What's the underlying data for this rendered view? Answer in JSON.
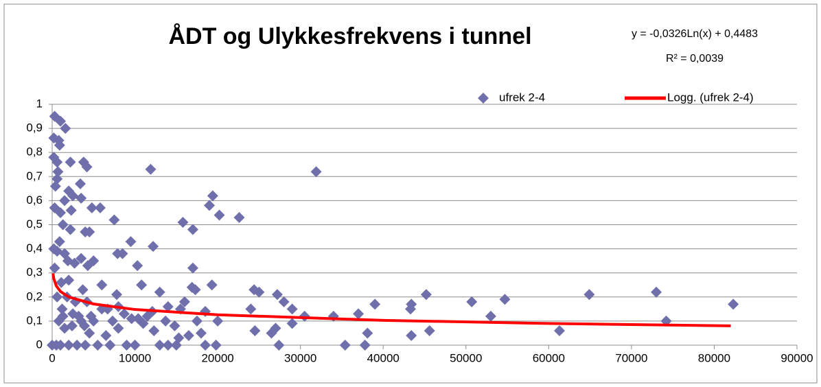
{
  "chart_data": {
    "type": "scatter",
    "title": "ÅDT og Ulykkesfrekvens i tunnel",
    "annotations": [
      "y = -0,0326Ln(x) + 0,4483",
      "R² = 0,0039"
    ],
    "xlim": [
      0,
      90000
    ],
    "xticks": [
      0,
      10000,
      20000,
      30000,
      40000,
      50000,
      60000,
      70000,
      80000,
      90000
    ],
    "ylim": [
      0,
      1
    ],
    "yticks": [
      0,
      {
        "value": 0.1,
        "label": "0,1"
      },
      {
        "value": 0.2,
        "label": "0,2"
      },
      {
        "value": 0.3,
        "label": "0,3"
      },
      {
        "value": 0.4,
        "label": "0,4"
      },
      {
        "value": 0.5,
        "label": "0,5"
      },
      {
        "value": 0.6,
        "label": "0,6"
      },
      {
        "value": 0.7,
        "label": "0,7"
      },
      {
        "value": 0.8,
        "label": "0,8"
      },
      {
        "value": 0.9,
        "label": "0,9"
      },
      1
    ],
    "grid": true,
    "legend": "top-right",
    "series": [
      {
        "name": "ufrek 2-4",
        "type": "scatter",
        "color": "#6f6fab",
        "x": [
          300,
          1000,
          1600,
          200,
          800,
          900,
          200,
          600,
          2200,
          3800,
          4200,
          11900,
          31900,
          700,
          600,
          400,
          3400,
          2000,
          1500,
          2500,
          3500,
          19400,
          19000,
          20200,
          22600,
          300,
          1000,
          5800,
          4800,
          2300,
          7500,
          15800,
          17000,
          1300,
          2200,
          4000,
          4500,
          200,
          900,
          9500,
          12200,
          7900,
          8500,
          600,
          1500,
          10300,
          1900,
          2700,
          3500,
          4300,
          5000,
          17000,
          300,
          1100,
          2000,
          6000,
          10800,
          19300,
          24400,
          25000,
          27200,
          28000,
          29000,
          13000,
          16900,
          17300,
          12100,
          14000,
          15500,
          7800,
          8000,
          9600,
          10400,
          18500,
          24000,
          30500,
          34000,
          37000,
          39000,
          43400,
          43300,
          45200,
          50700,
          53000,
          54700,
          64900,
          73000,
          74200,
          82300,
          61300,
          45600,
          43400,
          38100,
          37800,
          35400,
          27400,
          26500,
          27000,
          24500,
          29000,
          20000,
          18000,
          19800,
          18500,
          17500,
          16500,
          15000,
          15300,
          14000,
          13000,
          12300,
          11000,
          10000,
          9000,
          8000,
          7000,
          6500,
          6000,
          5000,
          4500,
          4000,
          3500,
          3000,
          2500,
          2000,
          1500,
          1000,
          500,
          0,
          800,
          1200,
          1800,
          2800,
          3200,
          3700,
          4200,
          5500,
          600,
          1300,
          2400,
          3900,
          4700,
          6700,
          7300,
          8700,
          11500,
          13700,
          16000,
          14800
        ],
        "values": [
          0.95,
          0.93,
          0.9,
          0.86,
          0.85,
          0.83,
          0.78,
          0.76,
          0.76,
          0.76,
          0.74,
          0.73,
          0.72,
          0.72,
          0.69,
          0.66,
          0.67,
          0.64,
          0.6,
          0.62,
          0.61,
          0.62,
          0.58,
          0.54,
          0.53,
          0.57,
          0.55,
          0.57,
          0.57,
          0.56,
          0.52,
          0.51,
          0.48,
          0.5,
          0.48,
          0.47,
          0.47,
          0.4,
          0.43,
          0.43,
          0.41,
          0.38,
          0.38,
          0.39,
          0.38,
          0.33,
          0.35,
          0.34,
          0.36,
          0.33,
          0.35,
          0.32,
          0.32,
          0.26,
          0.27,
          0.25,
          0.25,
          0.25,
          0.23,
          0.22,
          0.21,
          0.18,
          0.15,
          0.22,
          0.24,
          0.23,
          0.14,
          0.16,
          0.15,
          0.21,
          0.16,
          0.11,
          0.11,
          0.14,
          0.15,
          0.12,
          0.12,
          0.13,
          0.17,
          0.17,
          0.15,
          0.21,
          0.18,
          0.12,
          0.19,
          0.21,
          0.22,
          0.1,
          0.17,
          0.06,
          0.06,
          0.04,
          0.05,
          0,
          0,
          0,
          0.05,
          0.07,
          0.06,
          0.09,
          0.1,
          0.05,
          0,
          0,
          0.1,
          0.04,
          0,
          0.03,
          0,
          0,
          0.06,
          0.09,
          0,
          0,
          0.07,
          0,
          0.04,
          0.15,
          0.1,
          0.05,
          0,
          0.1,
          0,
          0.13,
          0,
          0.07,
          0,
          0,
          0,
          0.1,
          0.15,
          0.2,
          0.18,
          0.12,
          0.23,
          0.18,
          0,
          0.2,
          0.12,
          0.08,
          0.08,
          0.12,
          0.15,
          0.1,
          0.13,
          0.12,
          0.1,
          0.18,
          0.08
        ]
      },
      {
        "name": "Logg. (ufrek 2-4)",
        "type": "line",
        "color": "#ff0000",
        "x": [
          100,
          200,
          500,
          1000,
          2000,
          5000,
          10000,
          20000,
          40000,
          60000,
          82000
        ],
        "values": [
          0.298,
          0.276,
          0.246,
          0.223,
          0.2,
          0.171,
          0.148,
          0.126,
          0.103,
          0.09,
          0.08
        ]
      }
    ]
  }
}
